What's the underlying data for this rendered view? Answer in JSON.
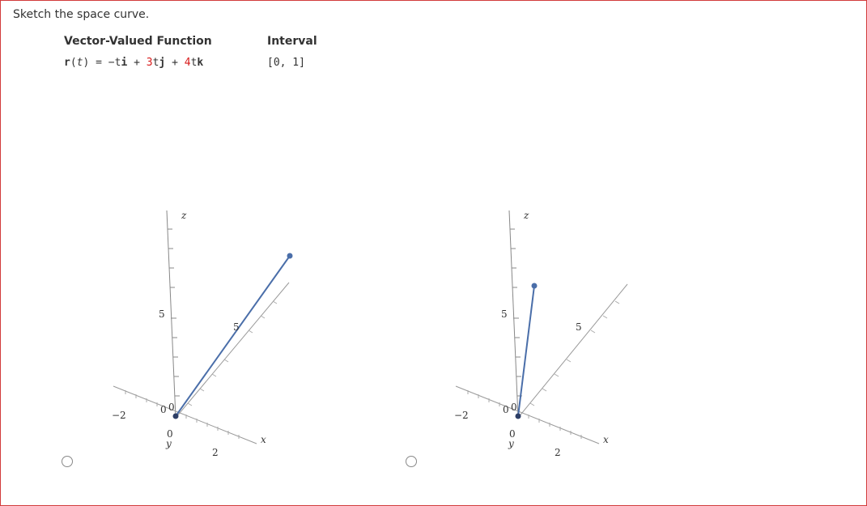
{
  "question": {
    "prompt": "Sketch the space curve."
  },
  "table": {
    "headers": [
      "Vector-Valued Function",
      "Interval"
    ],
    "function": {
      "r": "r",
      "open": "(",
      "t": "t",
      "close": ")",
      "eq": " = ",
      "neg": "−t",
      "i": "i",
      "plus1": " + ",
      "c3": "3",
      "t2": "t",
      "j": "j",
      "plus2": " + ",
      "c4": "4",
      "t3": "t",
      "k": "k"
    },
    "interval": "[0, 1]"
  },
  "options": [
    {
      "label": "option-a",
      "axes": {
        "z": "z",
        "x": "x",
        "y": "y"
      },
      "ticks": {
        "z5": "5",
        "z0": "0",
        "x5": "5",
        "x2": "2",
        "xneg2": "−2",
        "ymid0": "0",
        "ybottom0": "0"
      },
      "curve_color": "#4a6ea9"
    },
    {
      "label": "option-b",
      "axes": {
        "z": "z",
        "x": "x",
        "y": "y"
      },
      "ticks": {
        "z5": "5",
        "z0": "0",
        "x5": "5",
        "x2": "2",
        "xneg2": "−2",
        "ymid0": "0",
        "ybottom0": "0"
      },
      "curve_color": "#4a6ea9"
    }
  ]
}
